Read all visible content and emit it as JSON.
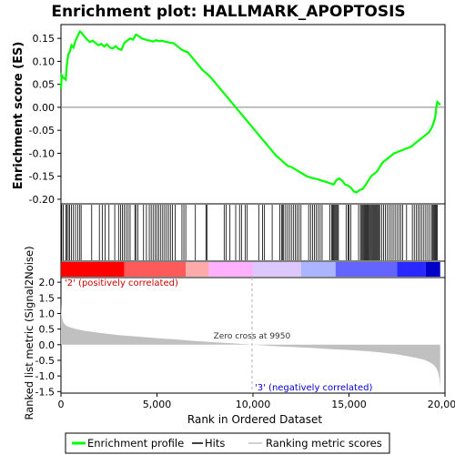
{
  "chart_data": {
    "type": "line",
    "title": "Enrichment plot: HALLMARK_APOPTOSIS",
    "xlabel": "Rank in Ordered Dataset",
    "x_ticks": [
      0,
      5000,
      10000,
      15000,
      20000
    ],
    "xlim": [
      0,
      20000
    ],
    "es_panel": {
      "ylabel": "Enrichment score (ES)",
      "y_ticks": [
        0.15,
        0.1,
        0.05,
        0.0,
        -0.05,
        -0.1,
        -0.15,
        -0.2
      ],
      "ylim": [
        -0.21,
        0.18
      ],
      "series": [
        {
          "name": "Enrichment profile",
          "color": "#00ff00",
          "x": [
            0,
            40,
            120,
            250,
            300,
            380,
            450,
            550,
            650,
            760,
            870,
            980,
            1050,
            1200,
            1350,
            1500,
            1650,
            1800,
            1950,
            2100,
            2250,
            2400,
            2550,
            2700,
            2850,
            3000,
            3150,
            3300,
            3450,
            3600,
            3750,
            3900,
            4050,
            4200,
            4350,
            4500,
            4650,
            4800,
            4950,
            5100,
            5250,
            5400,
            5550,
            5700,
            5850,
            6000,
            6150,
            6300,
            6450,
            6600,
            6800,
            7000,
            7200,
            7400,
            7600,
            7800,
            8000,
            8200,
            8400,
            8600,
            8800,
            9000,
            9200,
            9400,
            9600,
            9800,
            10000,
            10200,
            10400,
            10600,
            10800,
            11000,
            11200,
            11400,
            11600,
            11800,
            12000,
            12200,
            12400,
            12600,
            12800,
            13000,
            13200,
            13400,
            13600,
            13800,
            14000,
            14200,
            14350,
            14500,
            14650,
            14800,
            14950,
            15100,
            15250,
            15400,
            15550,
            15700,
            15850,
            16000,
            16150,
            16300,
            16450,
            16600,
            16750,
            16900,
            17050,
            17200,
            17350,
            17500,
            17650,
            17800,
            17950,
            18100,
            18250,
            18400,
            18550,
            18700,
            18850,
            19000,
            19150,
            19300,
            19400,
            19500,
            19550,
            19600,
            19700,
            19750
          ],
          "y": [
            0.04,
            0.07,
            0.065,
            0.06,
            0.09,
            0.115,
            0.12,
            0.135,
            0.13,
            0.145,
            0.155,
            0.165,
            0.163,
            0.155,
            0.148,
            0.142,
            0.145,
            0.14,
            0.135,
            0.138,
            0.132,
            0.137,
            0.13,
            0.128,
            0.133,
            0.127,
            0.125,
            0.14,
            0.145,
            0.15,
            0.147,
            0.158,
            0.155,
            0.15,
            0.148,
            0.146,
            0.145,
            0.143,
            0.146,
            0.144,
            0.145,
            0.143,
            0.142,
            0.14,
            0.14,
            0.135,
            0.13,
            0.125,
            0.122,
            0.12,
            0.11,
            0.1,
            0.09,
            0.08,
            0.073,
            0.065,
            0.055,
            0.045,
            0.035,
            0.025,
            0.015,
            0.005,
            -0.005,
            -0.015,
            -0.025,
            -0.035,
            -0.045,
            -0.055,
            -0.065,
            -0.075,
            -0.085,
            -0.095,
            -0.105,
            -0.112,
            -0.12,
            -0.127,
            -0.13,
            -0.135,
            -0.14,
            -0.145,
            -0.15,
            -0.153,
            -0.155,
            -0.157,
            -0.16,
            -0.162,
            -0.165,
            -0.168,
            -0.158,
            -0.155,
            -0.16,
            -0.168,
            -0.17,
            -0.175,
            -0.183,
            -0.185,
            -0.18,
            -0.178,
            -0.17,
            -0.16,
            -0.15,
            -0.145,
            -0.14,
            -0.13,
            -0.12,
            -0.115,
            -0.11,
            -0.105,
            -0.1,
            -0.098,
            -0.095,
            -0.093,
            -0.09,
            -0.088,
            -0.085,
            -0.08,
            -0.075,
            -0.07,
            -0.065,
            -0.06,
            -0.055,
            -0.045,
            -0.035,
            -0.02,
            0.0,
            0.012,
            0.008,
            0.005
          ]
        }
      ]
    },
    "hits_panel": {
      "legend_label": "Hits",
      "hit_ranks": [
        40,
        120,
        250,
        300,
        380,
        450,
        550,
        650,
        760,
        870,
        980,
        1050,
        1600,
        2000,
        2150,
        2300,
        2500,
        2800,
        3000,
        3100,
        3200,
        3300,
        3400,
        3500,
        3600,
        3850,
        3900,
        4000,
        4300,
        4450,
        4600,
        4700,
        4800,
        4900,
        5000,
        5100,
        5200,
        5300,
        5400,
        5500,
        5600,
        5700,
        5800,
        5950,
        6300,
        6400,
        6500,
        7000,
        7550,
        7600,
        8500,
        8600,
        8800,
        9100,
        9300,
        9400,
        9600,
        9700,
        10300,
        10500,
        10600,
        11000,
        11400,
        11500,
        11550,
        11600,
        11700,
        11800,
        11900,
        12000,
        12100,
        12200,
        12300,
        12400,
        12500,
        12900,
        13000,
        13100,
        13200,
        13300,
        13400,
        13500,
        13600,
        14000,
        14100,
        14150,
        14200,
        14250,
        14300,
        14350,
        14400,
        14450,
        14850,
        14950,
        15000,
        15100,
        15500,
        15600,
        15650,
        15700,
        15750,
        15800,
        15850,
        15900,
        15950,
        16000,
        16050,
        16100,
        16150,
        16200,
        16250,
        16300,
        16350,
        16400,
        16450,
        16500,
        16550,
        16600,
        16700,
        16800,
        16900,
        17000,
        17100,
        17200,
        17300,
        17400,
        17500,
        17600,
        17700,
        17800,
        18000,
        18300,
        18400,
        18500,
        18600,
        18700,
        18800,
        18900,
        19000,
        19100,
        19200,
        19300,
        19350,
        19400,
        19450,
        19500,
        19550,
        19600
      ]
    },
    "heatmap_band": {
      "label_positive": "'2' (positively correlated)",
      "label_negative": "'3' (negatively correlated)",
      "colors": [
        "#ff0000",
        "#ff5a5a",
        "#ffaaaa",
        "#ffb0ff",
        "#dcc8ff",
        "#aab4ff",
        "#6464ff",
        "#2828ff",
        "#0000c8"
      ],
      "color_stops": [
        0,
        3300,
        6500,
        7700,
        10000,
        12500,
        14300,
        17500,
        19000,
        19750
      ]
    },
    "metric_panel": {
      "ylabel": "Ranked list metric (Signal2Noise)",
      "y_ticks": [
        2.0,
        1.5,
        1.0,
        0.5,
        0.0,
        -0.5,
        -1.0,
        -1.5
      ],
      "ylim": [
        -1.55,
        2.15
      ],
      "zero_cross_label": "Zero cross at 9950",
      "zero_cross_rank": 9950,
      "fill_color": "#c0c0c0",
      "x": [
        0,
        20,
        60,
        120,
        200,
        300,
        500,
        800,
        1200,
        2000,
        3000,
        4000,
        5000,
        6000,
        7000,
        8000,
        9000,
        9950,
        11000,
        12000,
        13000,
        14000,
        15000,
        16000,
        16500,
        17000,
        17500,
        18000,
        18500,
        18900,
        19200,
        19400,
        19550,
        19650,
        19720,
        19750
      ],
      "values": [
        1.35,
        1.0,
        0.85,
        0.72,
        0.65,
        0.6,
        0.55,
        0.5,
        0.45,
        0.38,
        0.31,
        0.26,
        0.21,
        0.17,
        0.12,
        0.08,
        0.04,
        0.0,
        -0.04,
        -0.07,
        -0.1,
        -0.14,
        -0.17,
        -0.21,
        -0.24,
        -0.27,
        -0.31,
        -0.36,
        -0.42,
        -0.48,
        -0.56,
        -0.64,
        -0.75,
        -0.9,
        -1.15,
        -1.38
      ]
    },
    "legend": {
      "placement": "bottom",
      "items": [
        {
          "label": "Enrichment profile",
          "color": "#00ff00",
          "kind": "line"
        },
        {
          "label": "Hits",
          "color": "#000000",
          "kind": "line"
        },
        {
          "label": "Ranking metric scores",
          "color": "#c0c0c0",
          "kind": "line"
        }
      ]
    }
  }
}
